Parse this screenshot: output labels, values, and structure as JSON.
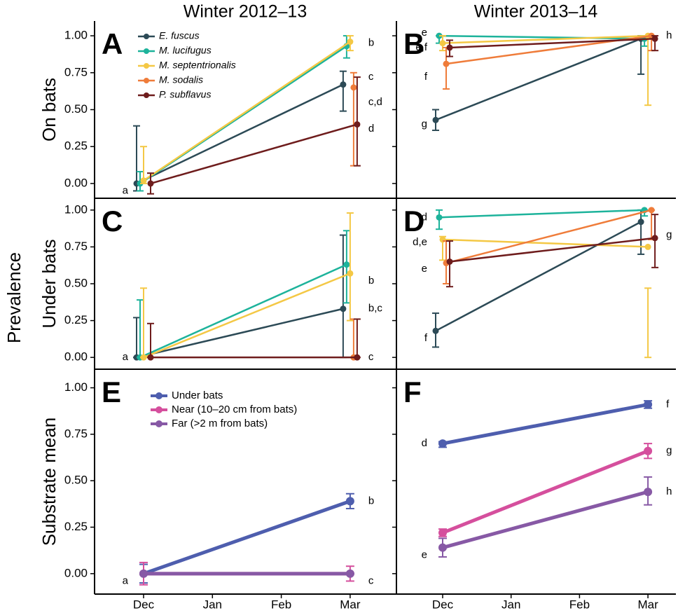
{
  "figure": {
    "column_titles": [
      "Winter 2012–13",
      "Winter 2013–14"
    ],
    "y_label": "Prevalence"
  },
  "chart_data": [
    {
      "type": "line",
      "panel": "A",
      "ylabel": "On bats",
      "categories": [
        "Dec",
        "Jan",
        "Feb",
        "Mar"
      ],
      "x": [
        "Dec",
        "Mar"
      ],
      "ylim": [
        -0.1,
        1.1
      ],
      "yticks": [
        {
          "value": 0,
          "label": "0.00"
        },
        {
          "value": 0.25,
          "label": "0.25"
        },
        {
          "value": 0.5,
          "label": "0.50"
        },
        {
          "value": 0.75,
          "label": "0.75"
        },
        {
          "value": 1,
          "label": "1.00"
        }
      ],
      "legend": "upper left",
      "series": [
        {
          "name": "E. fuscus",
          "color": "#2c4a56",
          "values": [
            0,
            0.67
          ],
          "lower": [
            -0.05,
            0.49
          ],
          "upper": [
            0.39,
            0.76
          ]
        },
        {
          "name": "M. lucifugus",
          "color": "#1db39b",
          "values": [
            0,
            0.93
          ],
          "lower": [
            -0.05,
            0.85
          ],
          "upper": [
            0.08,
            1.0
          ]
        },
        {
          "name": "M. septentrionalis",
          "color": "#f4c845",
          "values": [
            0.02,
            0.96
          ],
          "lower": [
            0,
            0.9
          ],
          "upper": [
            0.25,
            1.0
          ]
        },
        {
          "name": "M. sodalis",
          "color": "#ef7c3a",
          "values": [
            null,
            0.65
          ],
          "lower": [
            null,
            0.12
          ],
          "upper": [
            null,
            0.75
          ]
        },
        {
          "name": "P. subflavus",
          "color": "#6e1c1c",
          "values": [
            0,
            0.4
          ],
          "lower": [
            -0.07,
            0.12
          ],
          "upper": [
            0.07,
            0.72
          ]
        }
      ],
      "annotations": [
        {
          "text": "a",
          "x": "Dec",
          "y": -0.05
        },
        {
          "text": "b",
          "x": "Mar",
          "y": 0.95
        },
        {
          "text": "c",
          "x": "Mar",
          "y": 0.72
        },
        {
          "text": "c,d",
          "x": "Mar",
          "y": 0.55
        },
        {
          "text": "d",
          "x": "Mar",
          "y": 0.37
        }
      ]
    },
    {
      "type": "line",
      "panel": "B",
      "categories": [
        "Dec",
        "Jan",
        "Feb",
        "Mar"
      ],
      "x": [
        "Dec",
        "Mar"
      ],
      "ylim": [
        -0.1,
        1.1
      ],
      "yticks": [
        0,
        0.25,
        0.5,
        0.75,
        1
      ],
      "series": [
        {
          "color": "#2c4a56",
          "values": [
            0.43,
            0.98
          ],
          "lower": [
            0.36,
            0.74
          ],
          "upper": [
            0.5,
            1.0
          ]
        },
        {
          "color": "#1db39b",
          "values": [
            1.0,
            0.98
          ],
          "lower": [
            0.95,
            0.93
          ],
          "upper": [
            1.0,
            1.0
          ]
        },
        {
          "color": "#f4c845",
          "values": [
            0.95,
            1.0
          ],
          "lower": [
            0.9,
            0.53
          ],
          "upper": [
            1.0,
            1.0
          ]
        },
        {
          "color": "#ef7c3a",
          "values": [
            0.81,
            1.0
          ],
          "lower": [
            0.64,
            0.9
          ],
          "upper": [
            0.92,
            1.0
          ]
        },
        {
          "color": "#6e1c1c",
          "values": [
            0.92,
            0.98
          ],
          "lower": [
            0.86,
            0.9
          ],
          "upper": [
            0.97,
            1.0
          ]
        }
      ],
      "annotations": [
        {
          "text": "e",
          "x": "Dec",
          "y": 1.02
        },
        {
          "text": "e,f",
          "x": "Dec",
          "y": 0.92
        },
        {
          "text": "f",
          "x": "Dec",
          "y": 0.72
        },
        {
          "text": "g",
          "x": "Dec",
          "y": 0.4
        },
        {
          "text": "h",
          "x": "Mar",
          "y": 1.0
        }
      ]
    },
    {
      "type": "line",
      "panel": "C",
      "ylabel": "Under bats",
      "categories": [
        "Dec",
        "Jan",
        "Feb",
        "Mar"
      ],
      "x": [
        "Dec",
        "Mar"
      ],
      "ylim": [
        -0.08,
        1.08
      ],
      "yticks": [
        {
          "value": 0,
          "label": "0.00"
        },
        {
          "value": 0.25,
          "label": "0.25"
        },
        {
          "value": 0.5,
          "label": "0.50"
        },
        {
          "value": 0.75,
          "label": "0.75"
        },
        {
          "value": 1,
          "label": "1.00"
        }
      ],
      "series": [
        {
          "color": "#2c4a56",
          "values": [
            0,
            0.33
          ],
          "lower": [
            0,
            0
          ],
          "upper": [
            0.27,
            0.83
          ]
        },
        {
          "color": "#1db39b",
          "values": [
            0,
            0.63
          ],
          "lower": [
            0,
            0.37
          ],
          "upper": [
            0.39,
            0.86
          ]
        },
        {
          "color": "#f4c845",
          "values": [
            0,
            0.57
          ],
          "lower": [
            0,
            0.25
          ],
          "upper": [
            0.47,
            0.98
          ]
        },
        {
          "color": "#ef7c3a",
          "values": [
            null,
            0
          ],
          "lower": [
            null,
            0
          ],
          "upper": [
            null,
            0.26
          ]
        },
        {
          "color": "#6e1c1c",
          "values": [
            0,
            0
          ],
          "lower": [
            0,
            0
          ],
          "upper": [
            0.23,
            0.26
          ]
        }
      ],
      "annotations": [
        {
          "text": "a",
          "x": "Dec",
          "y": 0
        },
        {
          "text": "b",
          "x": "Mar",
          "y": 0.52
        },
        {
          "text": "b,c",
          "x": "Mar",
          "y": 0.33
        },
        {
          "text": "c",
          "x": "Mar",
          "y": 0
        }
      ]
    },
    {
      "type": "line",
      "panel": "D",
      "categories": [
        "Dec",
        "Jan",
        "Feb",
        "Mar"
      ],
      "x": [
        "Dec",
        "Mar"
      ],
      "ylim": [
        -0.08,
        1.08
      ],
      "yticks": [
        0,
        0.25,
        0.5,
        0.75,
        1
      ],
      "series": [
        {
          "color": "#2c4a56",
          "values": [
            0.18,
            0.92
          ],
          "lower": [
            0.07,
            0.7
          ],
          "upper": [
            0.3,
            1.0
          ]
        },
        {
          "color": "#1db39b",
          "values": [
            0.95,
            1.0
          ],
          "lower": [
            0.87,
            0.96
          ],
          "upper": [
            1.0,
            1.0
          ]
        },
        {
          "color": "#f4c845",
          "values": [
            0.8,
            0.75
          ],
          "lower": [
            0.66,
            0
          ],
          "upper": [
            0.82,
            0.47
          ]
        },
        {
          "color": "#ef7c3a",
          "values": [
            0.64,
            1.0
          ],
          "lower": [
            0.5,
            0.8
          ],
          "upper": [
            0.79,
            1.0
          ]
        },
        {
          "color": "#6e1c1c",
          "values": [
            0.65,
            0.81
          ],
          "lower": [
            0.48,
            0.61
          ],
          "upper": [
            0.79,
            0.97
          ]
        }
      ],
      "annotations": [
        {
          "text": "d",
          "x": "Dec",
          "y": 0.95
        },
        {
          "text": "d,e",
          "x": "Dec",
          "y": 0.78
        },
        {
          "text": "e",
          "x": "Dec",
          "y": 0.6
        },
        {
          "text": "f",
          "x": "Dec",
          "y": 0.13
        },
        {
          "text": "g",
          "x": "Mar",
          "y": 0.83
        }
      ]
    },
    {
      "type": "line",
      "panel": "E",
      "ylabel": "Substrate mean",
      "categories": [
        "Dec",
        "Jan",
        "Feb",
        "Mar"
      ],
      "x": [
        "Dec",
        "Mar"
      ],
      "ylim": [
        -0.11,
        1.1
      ],
      "yticks": [
        {
          "value": 0,
          "label": "0.00"
        },
        {
          "value": 0.25,
          "label": "0.25"
        },
        {
          "value": 0.5,
          "label": "0.50"
        },
        {
          "value": 0.75,
          "label": "0.75"
        },
        {
          "value": 1,
          "label": "1.00"
        }
      ],
      "legend": "upper left",
      "series": [
        {
          "name": "Under bats",
          "color": "#4e5eae",
          "values": [
            0,
            0.39
          ],
          "lower": [
            -0.05,
            0.35
          ],
          "upper": [
            0.05,
            0.43
          ]
        },
        {
          "name": "Near (10–20 cm from bats)",
          "color": "#d54f9d",
          "values": [
            0,
            0
          ],
          "lower": [
            -0.06,
            -0.04
          ],
          "upper": [
            0.06,
            0.04
          ]
        },
        {
          "name": "Far (>2 m from bats)",
          "color": "#8759a5",
          "values": [
            0,
            0
          ],
          "lower": [
            0,
            0
          ],
          "upper": [
            0,
            0
          ]
        }
      ],
      "annotations": [
        {
          "text": "a",
          "x": "Dec",
          "y": -0.04
        },
        {
          "text": "b",
          "x": "Mar",
          "y": 0.39
        },
        {
          "text": "c",
          "x": "Mar",
          "y": -0.04
        }
      ]
    },
    {
      "type": "line",
      "panel": "F",
      "categories": [
        "Dec",
        "Jan",
        "Feb",
        "Mar"
      ],
      "x": [
        "Dec",
        "Mar"
      ],
      "ylim": [
        -0.11,
        1.1
      ],
      "yticks": [
        0,
        0.25,
        0.5,
        0.75,
        1
      ],
      "series": [
        {
          "color": "#4e5eae",
          "values": [
            0.7,
            0.91
          ],
          "lower": [
            0.68,
            0.89
          ],
          "upper": [
            0.71,
            0.93
          ]
        },
        {
          "color": "#d54f9d",
          "values": [
            0.22,
            0.66
          ],
          "lower": [
            0.2,
            0.62
          ],
          "upper": [
            0.24,
            0.7
          ]
        },
        {
          "color": "#8759a5",
          "values": [
            0.14,
            0.44
          ],
          "lower": [
            0.09,
            0.37
          ],
          "upper": [
            0.19,
            0.52
          ]
        }
      ],
      "annotations": [
        {
          "text": "d",
          "x": "Dec",
          "y": 0.7
        },
        {
          "text": "e",
          "x": "Dec",
          "y": 0.1
        },
        {
          "text": "f",
          "x": "Mar",
          "y": 0.91
        },
        {
          "text": "g",
          "x": "Mar",
          "y": 0.66
        },
        {
          "text": "h",
          "x": "Mar",
          "y": 0.44
        }
      ]
    }
  ]
}
